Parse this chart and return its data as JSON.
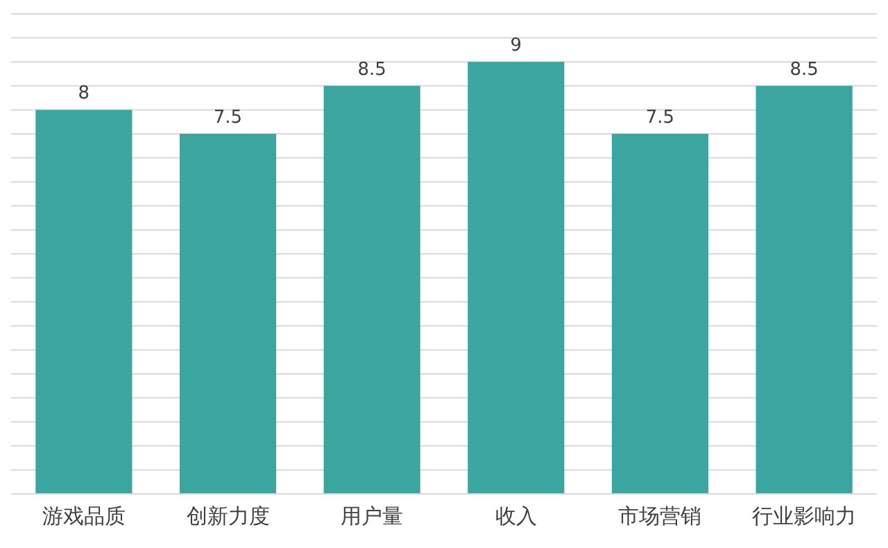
{
  "chart_data": {
    "type": "bar",
    "categories": [
      "游戏品质",
      "创新力度",
      "用户量",
      "收入",
      "市场营销",
      "行业影响力"
    ],
    "values": [
      8,
      7.5,
      8.5,
      9,
      7.5,
      8.5
    ],
    "color": "#3ba59f",
    "data_labels": true,
    "grid": "y",
    "tick_labels": "x",
    "ylim": [
      0,
      10
    ],
    "yticks": [
      {
        "value": 0,
        "label": null
      },
      {
        "value": 0.5,
        "label": null
      },
      {
        "value": 1,
        "label": null
      },
      {
        "value": 1.5,
        "label": null
      },
      {
        "value": 2,
        "label": null
      },
      {
        "value": 2.5,
        "label": null
      },
      {
        "value": 3,
        "label": null
      },
      {
        "value": 3.5,
        "label": null
      },
      {
        "value": 4,
        "label": null
      },
      {
        "value": 4.5,
        "label": null
      },
      {
        "value": 5,
        "label": null
      },
      {
        "value": 5.5,
        "label": null
      },
      {
        "value": 6,
        "label": null
      },
      {
        "value": 6.5,
        "label": null
      },
      {
        "value": 7,
        "label": null
      },
      {
        "value": 7.5,
        "label": null
      },
      {
        "value": 8,
        "label": null
      },
      {
        "value": 8.5,
        "label": null
      },
      {
        "value": 9,
        "label": null
      },
      {
        "value": 9.5,
        "label": null
      },
      {
        "value": 10,
        "label": null
      }
    ]
  }
}
